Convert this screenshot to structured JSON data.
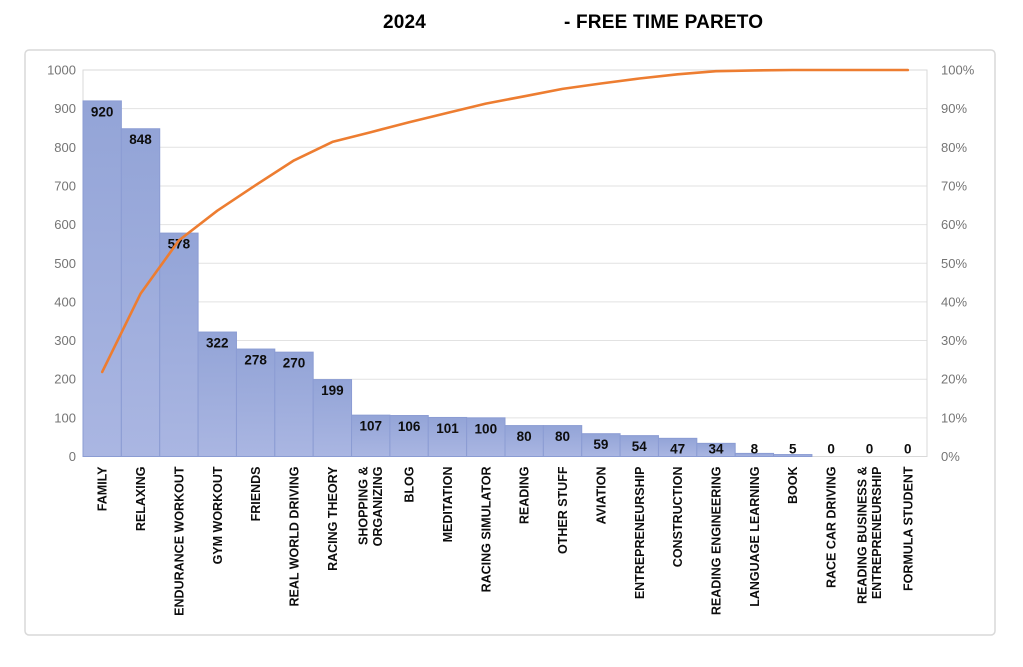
{
  "title": {
    "year": "2024",
    "rest": "- FREE TIME PARETO"
  },
  "chart_data": {
    "type": "bar",
    "subtype": "pareto",
    "title": "2024 - FREE TIME PARETO",
    "categories": [
      "FAMILY",
      "RELAXING",
      "ENDURANCE WORKOUT",
      "GYM WORKOUT",
      "FRIENDS",
      "REAL WORLD DRIVING",
      "RACING THEORY",
      "SHOPPING &\nORGANIZING",
      "BLOG",
      "MEDITATION",
      "RACING SIMULATOR",
      "READING",
      "OTHER STUFF",
      "AVIATION",
      "ENTREPRENEURSHIP",
      "CONSTRUCTION",
      "READING ENGINEERING",
      "LANGUAGE LEARNING",
      "BOOK",
      "RACE CAR DRIVING",
      "READING BUSINESS &\nENTREPRENEURSHIP",
      "FORMULA STUDENT"
    ],
    "values": [
      920,
      848,
      578,
      322,
      278,
      270,
      199,
      107,
      106,
      101,
      100,
      80,
      80,
      59,
      54,
      47,
      34,
      8,
      5,
      0,
      0,
      0
    ],
    "cumulative_pct": [
      21.9,
      42.1,
      55.9,
      63.6,
      70.2,
      76.6,
      81.4,
      83.9,
      86.5,
      88.9,
      91.3,
      93.2,
      95.1,
      96.5,
      97.8,
      98.9,
      99.7,
      99.9,
      100,
      100,
      100,
      100
    ],
    "left_axis": {
      "min": 0,
      "max": 1000,
      "step": 100,
      "ticks": [
        "1000",
        "900",
        "800",
        "700",
        "600",
        "500",
        "400",
        "300",
        "200",
        "100",
        "0"
      ]
    },
    "right_axis": {
      "min": "0%",
      "max": "100%",
      "ticks": [
        "100%",
        "90%",
        "80%",
        "70%",
        "60%",
        "50%",
        "40%",
        "30%",
        "20%",
        "10%",
        "0%"
      ]
    },
    "grid": true,
    "legend": "none",
    "colors": {
      "bar_fill_top": "#93A4D7",
      "bar_fill_bottom": "#AAB6E2",
      "bar_border": "#8B9CD3",
      "line": "#ED7D31",
      "grid": "#E2E2E2",
      "plot_border": "#D9D9D9",
      "frame_border": "#D9D9D9",
      "axis_text": "#757575",
      "label_text": "#0d0d0d"
    }
  }
}
